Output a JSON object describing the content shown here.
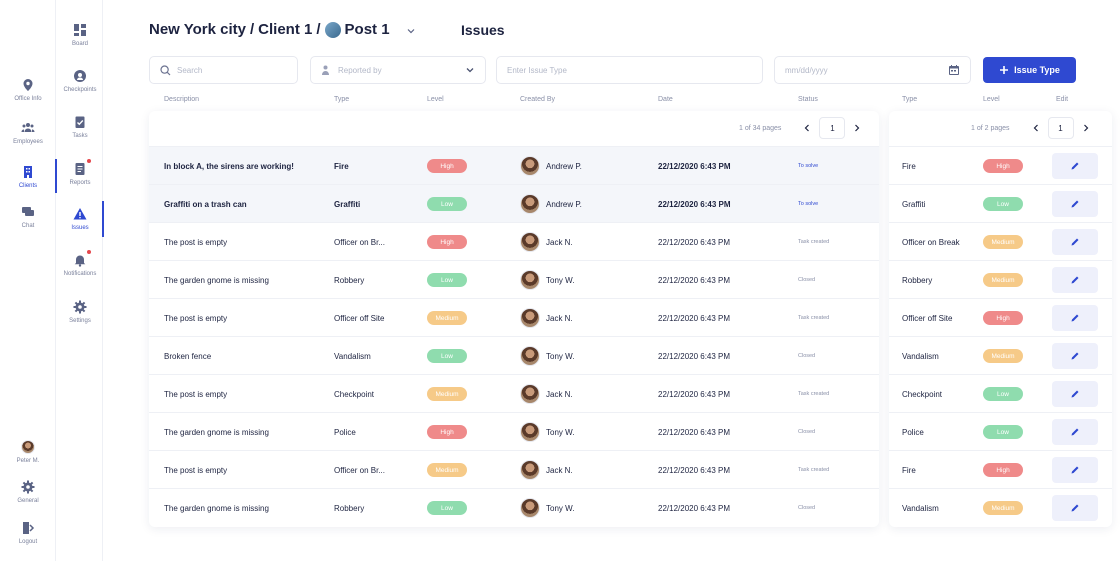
{
  "breadcrumb": {
    "city": "New York city",
    "client": "Client 1",
    "post": "Post 1",
    "sep": "/"
  },
  "page_title": "Issues",
  "sidebar_primary": [
    {
      "label": "Office Info",
      "icon": "location-pin-icon"
    },
    {
      "label": "Employees",
      "icon": "people-icon"
    },
    {
      "label": "Clients",
      "icon": "building-icon",
      "active": true
    },
    {
      "label": "Chat",
      "icon": "chat-icon"
    }
  ],
  "sidebar_primary_bottom": [
    {
      "label": "Peter M.",
      "icon": "avatar"
    },
    {
      "label": "General",
      "icon": "gear-icon"
    },
    {
      "label": "Logout",
      "icon": "logout-icon"
    }
  ],
  "sidebar_secondary": [
    {
      "label": "Board",
      "icon": "grid-icon"
    },
    {
      "label": "Checkpoints",
      "icon": "checkpoint-icon"
    },
    {
      "label": "Tasks",
      "icon": "clipboard-check-icon"
    },
    {
      "label": "Reports",
      "icon": "report-icon",
      "dot": true
    },
    {
      "label": "Issues",
      "icon": "warning-icon",
      "active": true
    },
    {
      "label": "Notifications",
      "icon": "bell-icon",
      "dot": true
    },
    {
      "label": "Settings",
      "icon": "gear-icon"
    }
  ],
  "filters": {
    "search_placeholder": "Search",
    "reported_by_placeholder": "Reported by",
    "issue_type_placeholder": "Enter Issue Type",
    "date_placeholder": "mm/dd/yyyy",
    "add_button": "Issue Type"
  },
  "columns": [
    "Description",
    "Type",
    "Level",
    "Created By",
    "Date",
    "Status"
  ],
  "right_columns": [
    "Type",
    "Level",
    "Edit"
  ],
  "pager_left": {
    "text": "1 of 34 pages",
    "page": "1"
  },
  "pager_right": {
    "text": "1 of 2 pages",
    "page": "1"
  },
  "rows": [
    {
      "desc": "In block A, the sirens are working!",
      "type": "Fire",
      "level": "High",
      "by": "Andrew P.",
      "date": "22/12/2020 6:43 PM",
      "status": "To solve"
    },
    {
      "desc": "Graffiti on a trash can",
      "type": "Graffiti",
      "level": "Low",
      "by": "Andrew P.",
      "date": "22/12/2020 6:43 PM",
      "status": "To solve"
    },
    {
      "desc": "The post is empty",
      "type": "Officer on Br...",
      "level": "High",
      "by": "Jack N.",
      "date": "22/12/2020 6:43 PM",
      "status": "Task created"
    },
    {
      "desc": "The garden gnome is missing",
      "type": "Robbery",
      "level": "Low",
      "by": "Tony W.",
      "date": "22/12/2020 6:43 PM",
      "status": "Closed"
    },
    {
      "desc": "The post is empty",
      "type": "Officer off Site",
      "level": "Medium",
      "by": "Jack N.",
      "date": "22/12/2020 6:43 PM",
      "status": "Task created"
    },
    {
      "desc": "Broken fence",
      "type": "Vandalism",
      "level": "Low",
      "by": "Tony W.",
      "date": "22/12/2020 6:43 PM",
      "status": "Closed"
    },
    {
      "desc": "The post is empty",
      "type": "Checkpoint",
      "level": "Medium",
      "by": "Jack N.",
      "date": "22/12/2020 6:43 PM",
      "status": "Task created"
    },
    {
      "desc": "The garden gnome is missing",
      "type": "Police",
      "level": "High",
      "by": "Tony W.",
      "date": "22/12/2020 6:43 PM",
      "status": "Closed"
    },
    {
      "desc": "The post is empty",
      "type": "Officer on Br...",
      "level": "Medium",
      "by": "Jack N.",
      "date": "22/12/2020 6:43 PM",
      "status": "Task created"
    },
    {
      "desc": "The garden gnome is missing",
      "type": "Robbery",
      "level": "Low",
      "by": "Tony W.",
      "date": "22/12/2020 6:43 PM",
      "status": "Closed"
    }
  ],
  "issue_types": [
    {
      "type": "Fire",
      "level": "High"
    },
    {
      "type": "Graffiti",
      "level": "Low"
    },
    {
      "type": "Officer on Break",
      "level": "Medium"
    },
    {
      "type": "Robbery",
      "level": "Medium"
    },
    {
      "type": "Officer off Site",
      "level": "High"
    },
    {
      "type": "Vandalism",
      "level": "Medium"
    },
    {
      "type": "Checkpoint",
      "level": "Low"
    },
    {
      "type": "Police",
      "level": "Low"
    },
    {
      "type": "Fire",
      "level": "High"
    },
    {
      "type": "Vandalism",
      "level": "Medium"
    }
  ],
  "colors": {
    "accent": "#2f49d1",
    "high": "#ef8a8a",
    "low": "#8fdcae",
    "medium": "#f6ca88"
  }
}
